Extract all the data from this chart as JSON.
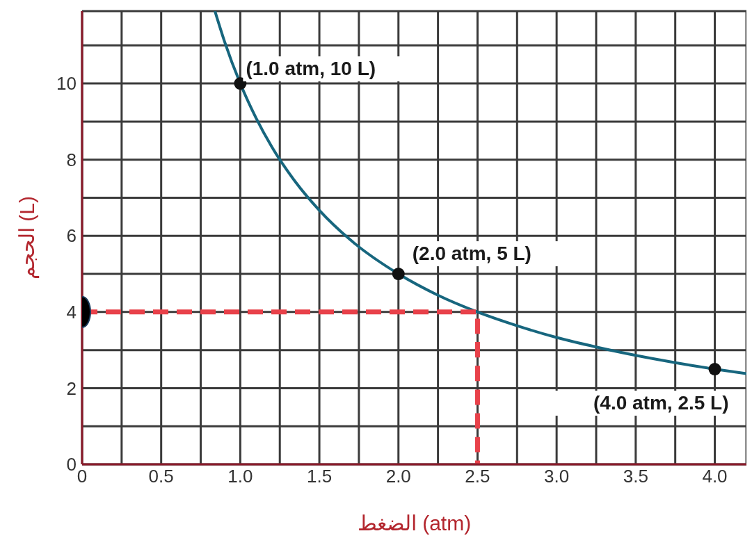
{
  "chart_data": {
    "type": "line",
    "xlabel": "الضغط (atm)",
    "ylabel": "الحجم (L)",
    "xlim": [
      0,
      4.2
    ],
    "ylim": [
      0,
      11.9
    ],
    "xticks": [
      0,
      {
        "value": 0.25,
        "label": null
      },
      {
        "value": 0.5,
        "label": "0.5"
      },
      {
        "value": 0.75,
        "label": null
      },
      {
        "value": 1,
        "label": "1.0"
      },
      {
        "value": 1.25,
        "label": null
      },
      {
        "value": 1.5,
        "label": "1.5"
      },
      {
        "value": 1.75,
        "label": null
      },
      {
        "value": 2,
        "label": "2.0"
      },
      {
        "value": 2.25,
        "label": null
      },
      {
        "value": 2.5,
        "label": "2.5"
      },
      {
        "value": 2.75,
        "label": null
      },
      {
        "value": 3,
        "label": "3.0"
      },
      {
        "value": 3.25,
        "label": null
      },
      {
        "value": 3.5,
        "label": "3.5"
      },
      {
        "value": 3.75,
        "label": null
      },
      {
        "value": 4,
        "label": "4.0"
      }
    ],
    "yticks": [
      0,
      {
        "value": 1,
        "label": null
      },
      2,
      {
        "value": 3,
        "label": null
      },
      4,
      {
        "value": 5,
        "label": null
      },
      6,
      {
        "value": 7,
        "label": null
      },
      8,
      {
        "value": 9,
        "label": null
      },
      10,
      {
        "value": 11,
        "label": null
      }
    ],
    "grid": true,
    "legend": false,
    "series": [
      {
        "color": "#17667e",
        "marker": "none",
        "line_style": "solid",
        "x": [
          0.84,
          0.9,
          1,
          1.1,
          1.2,
          1.35,
          1.5,
          1.7,
          2,
          2.25,
          2.5,
          2.75,
          3,
          3.25,
          3.5,
          3.75,
          4,
          4.2
        ],
        "values": [
          11.9,
          11.11,
          10,
          9.09,
          8.33,
          7.41,
          6.67,
          5.88,
          5,
          4.44,
          4,
          3.64,
          3.33,
          3.08,
          2.86,
          2.67,
          2.5,
          2.38
        ]
      },
      {
        "color": "#e8414a",
        "marker": "none",
        "line_style": "dashed",
        "x": [
          0,
          2.5,
          2.5
        ],
        "values": [
          4,
          4,
          0
        ]
      },
      {
        "type": "scatter",
        "color": "#111111",
        "marker": "circle",
        "x": [
          1,
          2,
          4
        ],
        "values": [
          10,
          5,
          2.5
        ]
      },
      {
        "type": "scatter",
        "color": "#000000",
        "marker": "circle",
        "x": [
          0
        ],
        "values": [
          4
        ]
      }
    ],
    "annotations": [
      {
        "text": "(1.0 atm, 10 L)",
        "x": 1,
        "y": 10
      },
      {
        "text": "(2.0 atm, 5 L)",
        "x": 2,
        "y": 5
      },
      {
        "text": "(4.0 atm, 2.5 L)",
        "x": 4,
        "y": 2.5
      }
    ]
  }
}
